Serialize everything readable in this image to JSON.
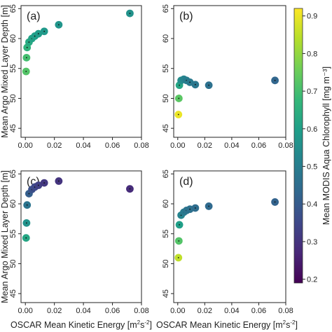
{
  "figure": {
    "ylabel": "Mean Argo Mixed Layer Depth [m]",
    "xlabel_prefix": "OSCAR Mean Kinetic Energy [m",
    "xlabel_sup1": "2",
    "xlabel_mid": "s",
    "xlabel_sup2": "-2",
    "xlabel_suffix": "]",
    "colorbar_label": "Mean MODIS Aqua Chlorophyll [mg m⁻³]",
    "colorbar_ticks": [
      "0.2",
      "0.3",
      "0.4",
      "0.5",
      "0.6",
      "0.7",
      "0.8",
      "0.9"
    ],
    "colorbar_ticks_values": [
      0.2,
      0.3,
      0.4,
      0.5,
      0.6,
      0.7,
      0.8,
      0.9
    ],
    "colorbar_range": [
      0.19,
      0.92
    ],
    "colormap": "viridis"
  },
  "chart_data": [
    {
      "type": "scatter",
      "panel_label": "(a)",
      "xlim": [
        -0.003,
        0.08
      ],
      "ylim": [
        65.5,
        43.5
      ],
      "xticks": [
        0.0,
        0.02,
        0.04,
        0.06,
        0.08
      ],
      "xtick_labels": [
        "0.00",
        "0.02",
        "0.04",
        "0.06",
        "0.08"
      ],
      "yticks": [
        45,
        50,
        55,
        60,
        65
      ],
      "ytick_labels": [
        "45",
        "50",
        "55",
        "60",
        "65"
      ],
      "x": [
        0.0005,
        0.0008,
        0.0012,
        0.0025,
        0.0045,
        0.0065,
        0.009,
        0.013,
        0.023,
        0.072
      ],
      "y": [
        54.5,
        56.8,
        58.5,
        59.4,
        60.0,
        60.4,
        60.8,
        61.2,
        62.3,
        64.2
      ],
      "c": [
        0.72,
        0.7,
        0.66,
        0.63,
        0.61,
        0.6,
        0.59,
        0.58,
        0.57,
        0.56
      ]
    },
    {
      "type": "scatter",
      "panel_label": "(b)",
      "xlim": [
        -0.003,
        0.08
      ],
      "ylim": [
        65.5,
        43.5
      ],
      "xticks": [
        0.0,
        0.02,
        0.04,
        0.06,
        0.08
      ],
      "xtick_labels": [
        "0.00",
        "0.02",
        "0.04",
        "0.06",
        "0.08"
      ],
      "yticks": [
        45,
        50,
        55,
        60,
        65
      ],
      "ytick_labels": [
        "45",
        "50",
        "55",
        "60",
        "65"
      ],
      "x": [
        0.0005,
        0.0008,
        0.0012,
        0.0025,
        0.0045,
        0.0065,
        0.009,
        0.013,
        0.023,
        0.072
      ],
      "y": [
        47.3,
        50.0,
        52.2,
        53.0,
        53.2,
        53.0,
        52.7,
        52.3,
        52.2,
        53.0
      ],
      "c": [
        0.9,
        0.73,
        0.62,
        0.55,
        0.52,
        0.5,
        0.49,
        0.48,
        0.46,
        0.43
      ]
    },
    {
      "type": "scatter",
      "panel_label": "(c)",
      "xlim": [
        -0.003,
        0.08
      ],
      "ylim": [
        65.5,
        43.5
      ],
      "xticks": [
        0.0,
        0.02,
        0.04,
        0.06,
        0.08
      ],
      "xtick_labels": [
        "0.00",
        "0.02",
        "0.04",
        "0.06",
        "0.08"
      ],
      "yticks": [
        45,
        50,
        55,
        60,
        65
      ],
      "ytick_labels": [
        "45",
        "50",
        "55",
        "60",
        "65"
      ],
      "x": [
        0.0005,
        0.0008,
        0.0012,
        0.0025,
        0.0045,
        0.0065,
        0.009,
        0.013,
        0.023,
        0.072
      ],
      "y": [
        54.3,
        56.8,
        59.8,
        61.7,
        62.4,
        62.8,
        63.1,
        63.5,
        63.8,
        62.5
      ],
      "c": [
        0.62,
        0.56,
        0.47,
        0.41,
        0.37,
        0.35,
        0.33,
        0.31,
        0.3,
        0.28
      ]
    },
    {
      "type": "scatter",
      "panel_label": "(d)",
      "xlim": [
        -0.003,
        0.08
      ],
      "ylim": [
        65.5,
        43.5
      ],
      "xticks": [
        0.0,
        0.02,
        0.04,
        0.06,
        0.08
      ],
      "xtick_labels": [
        "0.00",
        "0.02",
        "0.04",
        "0.06",
        "0.08"
      ],
      "yticks": [
        45,
        50,
        55,
        60,
        65
      ],
      "ytick_labels": [
        "45",
        "50",
        "55",
        "60",
        "65"
      ],
      "x": [
        0.0005,
        0.0008,
        0.0012,
        0.0025,
        0.0045,
        0.0065,
        0.009,
        0.013,
        0.023,
        0.072
      ],
      "y": [
        51.0,
        53.8,
        56.5,
        58.1,
        58.6,
        58.9,
        59.1,
        59.3,
        59.6,
        60.3
      ],
      "c": [
        0.85,
        0.72,
        0.6,
        0.52,
        0.49,
        0.47,
        0.46,
        0.45,
        0.44,
        0.42
      ]
    }
  ]
}
